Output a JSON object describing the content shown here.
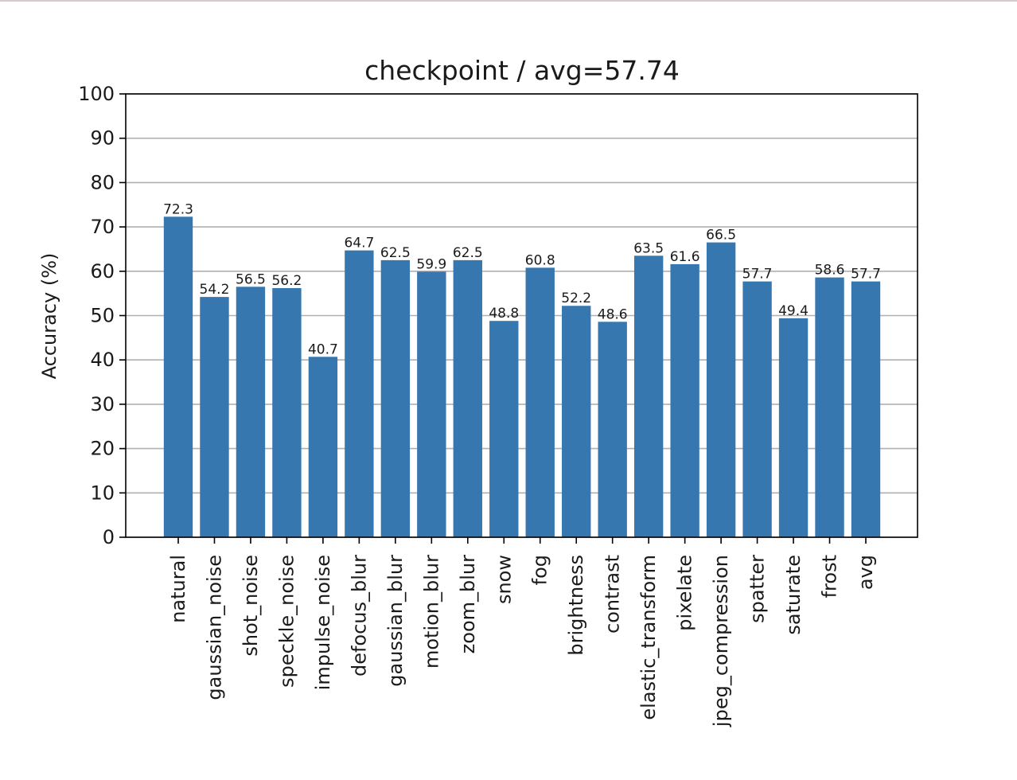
{
  "chart_data": {
    "type": "bar",
    "title": "checkpoint / avg=57.74",
    "xlabel": "",
    "ylabel": "Accuracy (%)",
    "ylim": [
      0,
      100
    ],
    "yticks": [
      0,
      10,
      20,
      30,
      40,
      50,
      60,
      70,
      80,
      90,
      100
    ],
    "grid": "horizontal",
    "bar_color": "#3777b0",
    "categories": [
      "natural",
      "gaussian_noise",
      "shot_noise",
      "speckle_noise",
      "impulse_noise",
      "defocus_blur",
      "gaussian_blur",
      "motion_blur",
      "zoom_blur",
      "snow",
      "fog",
      "brightness",
      "contrast",
      "elastic_transform",
      "pixelate",
      "jpeg_compression",
      "spatter",
      "saturate",
      "frost",
      "avg"
    ],
    "values": [
      72.3,
      54.2,
      56.5,
      56.2,
      40.7,
      64.7,
      62.5,
      59.9,
      62.5,
      48.8,
      60.8,
      52.2,
      48.6,
      63.5,
      61.6,
      66.5,
      57.7,
      49.4,
      58.6,
      57.7
    ],
    "data_labels": [
      "72.3",
      "54.2",
      "56.5",
      "56.2",
      "40.7",
      "64.7",
      "62.5",
      "59.9",
      "62.5",
      "48.8",
      "60.8",
      "52.2",
      "48.6",
      "63.5",
      "61.6",
      "66.5",
      "57.7",
      "49.4",
      "58.6",
      "57.7"
    ]
  }
}
